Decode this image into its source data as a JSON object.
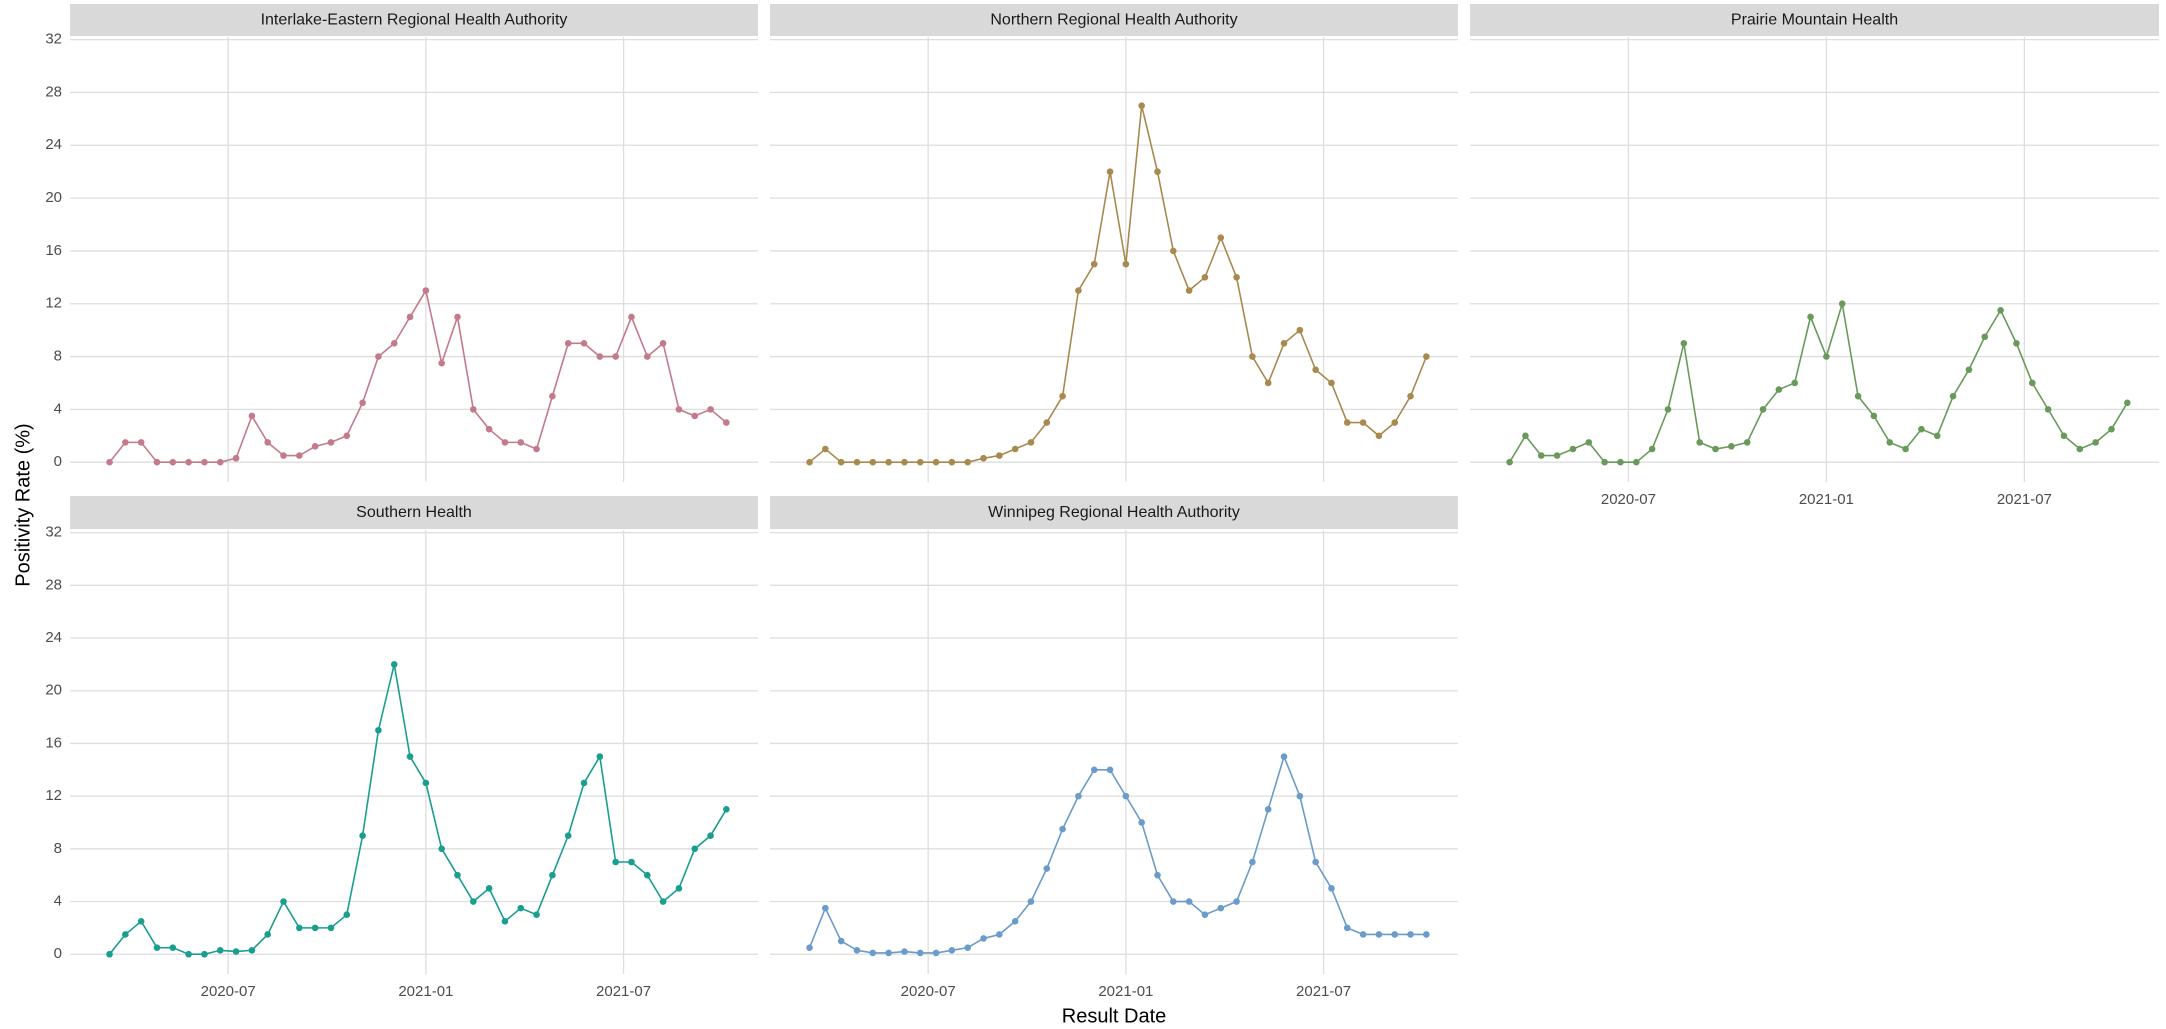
{
  "axis_titles": {
    "x": "Result Date",
    "y": "Positivity Rate (%)"
  },
  "chart_data": [
    {
      "type": "line",
      "title": "Interlake-Eastern Regional Health Authority",
      "color": "#c47a8b",
      "x": [
        2020.2,
        2020.24,
        2020.28,
        2020.32,
        2020.36,
        2020.4,
        2020.44,
        2020.48,
        2020.52,
        2020.56,
        2020.6,
        2020.64,
        2020.68,
        2020.72,
        2020.76,
        2020.8,
        2020.84,
        2020.88,
        2020.92,
        2020.96,
        2021,
        2021.04,
        2021.08,
        2021.12,
        2021.16,
        2021.2,
        2021.24,
        2021.28,
        2021.32,
        2021.36,
        2021.4,
        2021.44,
        2021.48,
        2021.52,
        2021.56,
        2021.6,
        2021.64,
        2021.68,
        2021.72,
        2021.76
      ],
      "values": [
        0,
        1.5,
        1.5,
        0,
        0,
        0,
        0,
        0,
        0.3,
        3.5,
        1.5,
        0.5,
        0.5,
        1.2,
        1.5,
        2,
        4.5,
        8,
        9,
        11,
        13,
        7.5,
        11,
        4,
        2.5,
        1.5,
        1.5,
        1,
        5,
        9,
        9,
        8,
        8,
        11,
        8,
        9,
        4,
        3.5,
        4,
        3
      ],
      "xlim": [
        2020.1,
        2021.84
      ],
      "xticks": [
        2020.5,
        2021,
        2021.5
      ],
      "ylim": [
        -1.5,
        32.2
      ],
      "yticks": [
        0,
        4,
        8,
        12,
        16,
        20,
        24,
        28,
        32
      ]
    },
    {
      "type": "line",
      "title": "Northern Regional Health Authority",
      "color": "#a88a4f",
      "x": [
        2020.2,
        2020.24,
        2020.28,
        2020.32,
        2020.36,
        2020.4,
        2020.44,
        2020.48,
        2020.52,
        2020.56,
        2020.6,
        2020.64,
        2020.68,
        2020.72,
        2020.76,
        2020.8,
        2020.84,
        2020.88,
        2020.92,
        2020.96,
        2021,
        2021.04,
        2021.08,
        2021.12,
        2021.16,
        2021.2,
        2021.24,
        2021.28,
        2021.32,
        2021.36,
        2021.4,
        2021.44,
        2021.48,
        2021.52,
        2021.56,
        2021.6,
        2021.64,
        2021.68,
        2021.72,
        2021.76
      ],
      "values": [
        0,
        1,
        0,
        0,
        0,
        0,
        0,
        0,
        0,
        0,
        0,
        0.3,
        0.5,
        1,
        1.5,
        3,
        5,
        13,
        15,
        22,
        15,
        27,
        22,
        16,
        13,
        14,
        17,
        14,
        8,
        6,
        9,
        10,
        7,
        6,
        3,
        3,
        2,
        3,
        5,
        8
      ],
      "xlim": [
        2020.1,
        2021.84
      ],
      "xticks": [
        2020.5,
        2021,
        2021.5
      ],
      "ylim": [
        -1.5,
        32.2
      ],
      "yticks": [
        0,
        4,
        8,
        12,
        16,
        20,
        24,
        28,
        32
      ]
    },
    {
      "type": "line",
      "title": "Prairie Mountain Health",
      "color": "#6a9a5b",
      "x": [
        2020.2,
        2020.24,
        2020.28,
        2020.32,
        2020.36,
        2020.4,
        2020.44,
        2020.48,
        2020.52,
        2020.56,
        2020.6,
        2020.64,
        2020.68,
        2020.72,
        2020.76,
        2020.8,
        2020.84,
        2020.88,
        2020.92,
        2020.96,
        2021,
        2021.04,
        2021.08,
        2021.12,
        2021.16,
        2021.2,
        2021.24,
        2021.28,
        2021.32,
        2021.36,
        2021.4,
        2021.44,
        2021.48,
        2021.52,
        2021.56,
        2021.6,
        2021.64,
        2021.68,
        2021.72,
        2021.76
      ],
      "values": [
        0,
        2,
        0.5,
        0.5,
        1,
        1.5,
        0,
        0,
        0,
        1,
        4,
        9,
        1.5,
        1,
        1.2,
        1.5,
        4,
        5.5,
        6,
        11,
        8,
        12,
        5,
        3.5,
        1.5,
        1,
        2.5,
        2,
        5,
        7,
        9.5,
        11.5,
        9,
        6,
        4,
        2,
        1,
        1.5,
        2.5,
        4.5
      ],
      "xlim": [
        2020.1,
        2021.84
      ],
      "xticks": [
        {
          "value": 2020.5,
          "label": "2020-07"
        },
        {
          "value": 2021,
          "label": "2021-01"
        },
        {
          "value": 2021.5,
          "label": "2021-07"
        }
      ],
      "ylim": [
        -1.5,
        32.2
      ],
      "yticks": [
        0,
        4,
        8,
        12,
        16,
        20,
        24,
        28,
        32
      ]
    },
    {
      "type": "line",
      "title": "Southern Health",
      "color": "#1a9e8f",
      "x": [
        2020.2,
        2020.24,
        2020.28,
        2020.32,
        2020.36,
        2020.4,
        2020.44,
        2020.48,
        2020.52,
        2020.56,
        2020.6,
        2020.64,
        2020.68,
        2020.72,
        2020.76,
        2020.8,
        2020.84,
        2020.88,
        2020.92,
        2020.96,
        2021,
        2021.04,
        2021.08,
        2021.12,
        2021.16,
        2021.2,
        2021.24,
        2021.28,
        2021.32,
        2021.36,
        2021.4,
        2021.44,
        2021.48,
        2021.52,
        2021.56,
        2021.6,
        2021.64,
        2021.68,
        2021.72,
        2021.76
      ],
      "values": [
        0,
        1.5,
        2.5,
        0.5,
        0.5,
        0,
        0,
        0.3,
        0.2,
        0.3,
        1.5,
        4,
        2,
        2,
        2,
        3,
        9,
        17,
        22,
        15,
        13,
        8,
        6,
        4,
        5,
        2.5,
        3.5,
        3,
        6,
        9,
        13,
        15,
        7,
        7,
        6,
        4,
        5,
        8,
        9,
        11
      ],
      "xlim": [
        2020.1,
        2021.84
      ],
      "xticks": [
        {
          "value": 2020.5,
          "label": "2020-07"
        },
        {
          "value": 2021,
          "label": "2021-01"
        },
        {
          "value": 2021.5,
          "label": "2021-07"
        }
      ],
      "ylim": [
        -1.5,
        32.2
      ],
      "yticks": [
        0,
        4,
        8,
        12,
        16,
        20,
        24,
        28,
        32
      ]
    },
    {
      "type": "line",
      "title": "Winnipeg Regional Health Authority",
      "color": "#6b9bc8",
      "x": [
        2020.2,
        2020.24,
        2020.28,
        2020.32,
        2020.36,
        2020.4,
        2020.44,
        2020.48,
        2020.52,
        2020.56,
        2020.6,
        2020.64,
        2020.68,
        2020.72,
        2020.76,
        2020.8,
        2020.84,
        2020.88,
        2020.92,
        2020.96,
        2021,
        2021.04,
        2021.08,
        2021.12,
        2021.16,
        2021.2,
        2021.24,
        2021.28,
        2021.32,
        2021.36,
        2021.4,
        2021.44,
        2021.48,
        2021.52,
        2021.56,
        2021.6,
        2021.64,
        2021.68,
        2021.72,
        2021.76
      ],
      "values": [
        0.5,
        3.5,
        1,
        0.3,
        0.1,
        0.1,
        0.2,
        0.1,
        0.1,
        0.3,
        0.5,
        1.2,
        1.5,
        2.5,
        4,
        6.5,
        9.5,
        12,
        14,
        14,
        12,
        10,
        6,
        4,
        4,
        3,
        3.5,
        4,
        7,
        11,
        15,
        12,
        7,
        5,
        2,
        1.5,
        1.5,
        1.5,
        1.5,
        1.5
      ],
      "xlim": [
        2020.1,
        2021.84
      ],
      "xticks": [
        {
          "value": 2020.5,
          "label": "2020-07"
        },
        {
          "value": 2021,
          "label": "2021-01"
        },
        {
          "value": 2021.5,
          "label": "2021-07"
        }
      ],
      "ylim": [
        -1.5,
        32.2
      ],
      "yticks": [
        0,
        4,
        8,
        12,
        16,
        20,
        24,
        28,
        32
      ]
    }
  ]
}
